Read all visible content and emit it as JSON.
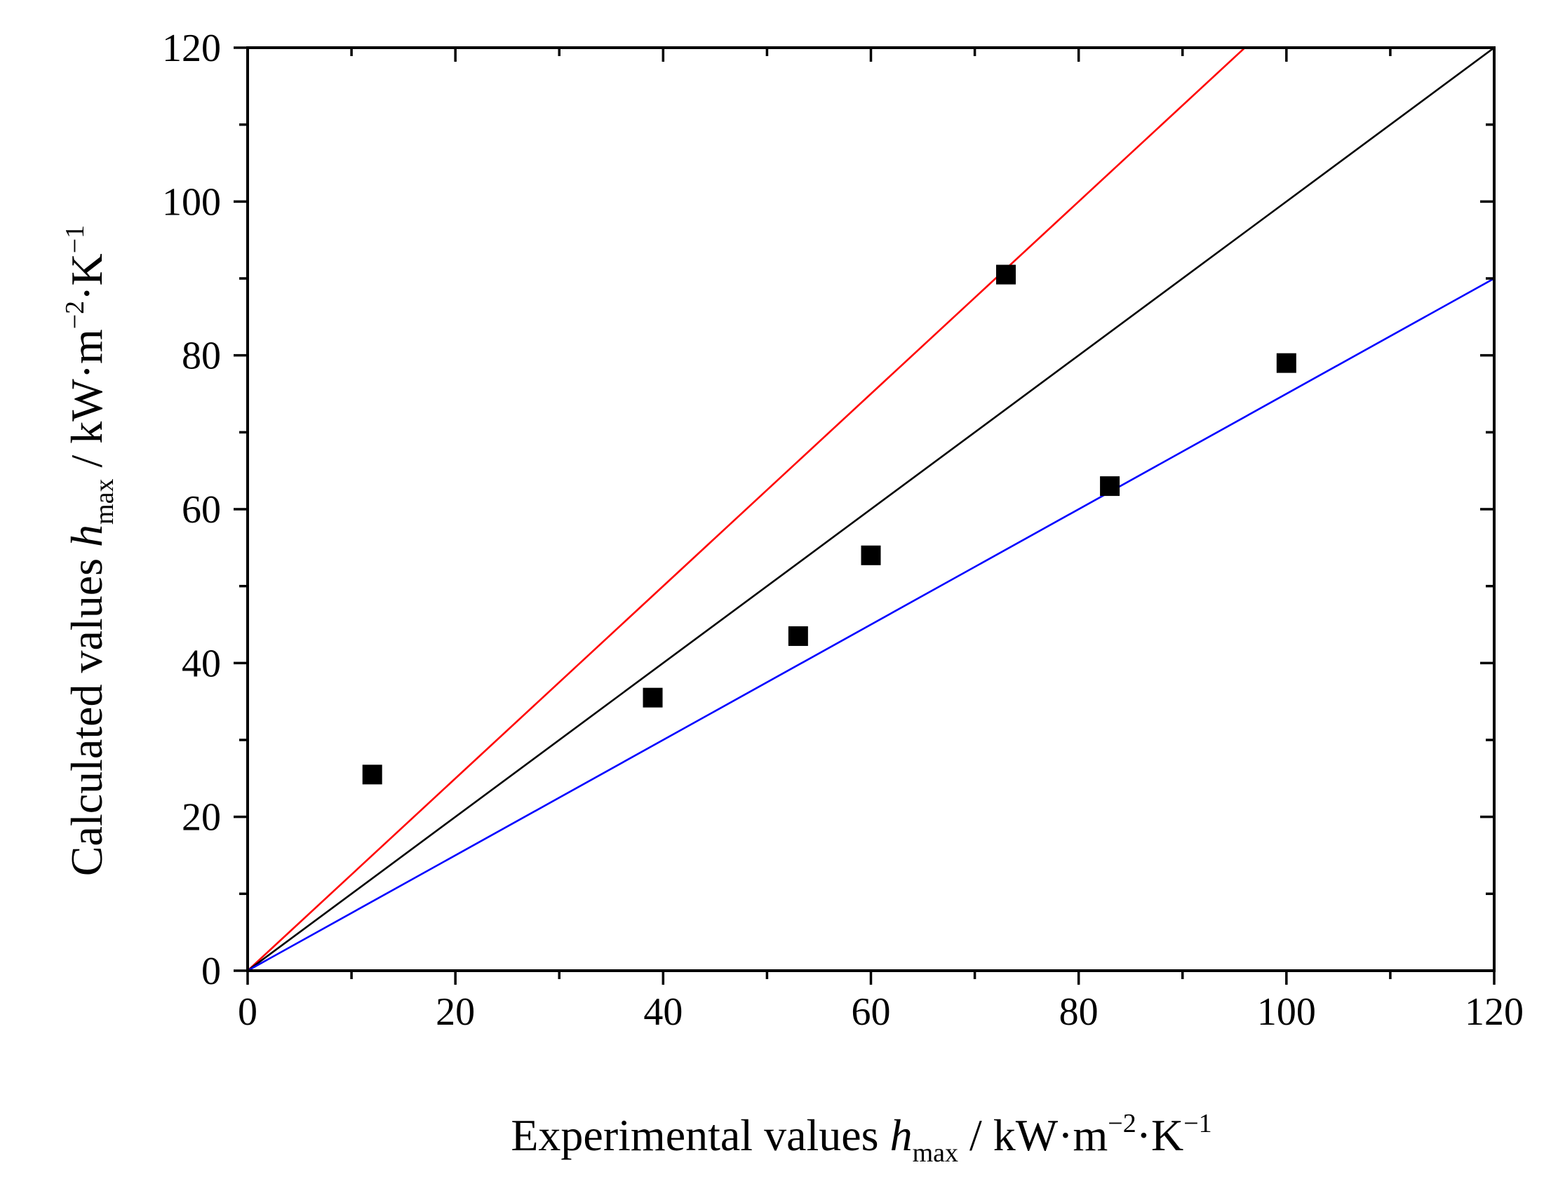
{
  "chart_data": {
    "type": "scatter",
    "title": "",
    "xlabel": {
      "prefix": "Experimental values ",
      "symbol": "h",
      "subscript": "max",
      "unit_a": " / kW·m",
      "exp_a": "−2",
      "unit_b": "·K",
      "exp_b": "−1"
    },
    "ylabel": {
      "prefix": "Calculated values ",
      "symbol": "h",
      "subscript": "max",
      "unit_a": " / kW·m",
      "exp_a": "−2",
      "unit_b": "·K",
      "exp_b": "−1"
    },
    "xlim": [
      0,
      120
    ],
    "ylim": [
      0,
      120
    ],
    "xticks": [
      0,
      20,
      40,
      60,
      80,
      100,
      120
    ],
    "yticks": [
      0,
      20,
      40,
      60,
      80,
      100,
      120
    ],
    "minor_step": 10,
    "grid": false,
    "series": [
      {
        "name": "data",
        "marker": "square",
        "color": "#000000",
        "points": [
          {
            "x": 12,
            "y": 25.5
          },
          {
            "x": 39,
            "y": 35.5
          },
          {
            "x": 53,
            "y": 43.5
          },
          {
            "x": 60,
            "y": 54
          },
          {
            "x": 73,
            "y": 90.5
          },
          {
            "x": 83,
            "y": 63
          },
          {
            "x": 100,
            "y": 79
          }
        ]
      }
    ],
    "reference_lines": [
      {
        "name": "+25% line",
        "slope": 1.25,
        "color": "#ff0000"
      },
      {
        "name": "parity line",
        "slope": 1.0,
        "color": "#000000"
      },
      {
        "name": "-25% line",
        "slope": 0.75,
        "color": "#0000ff"
      }
    ]
  }
}
